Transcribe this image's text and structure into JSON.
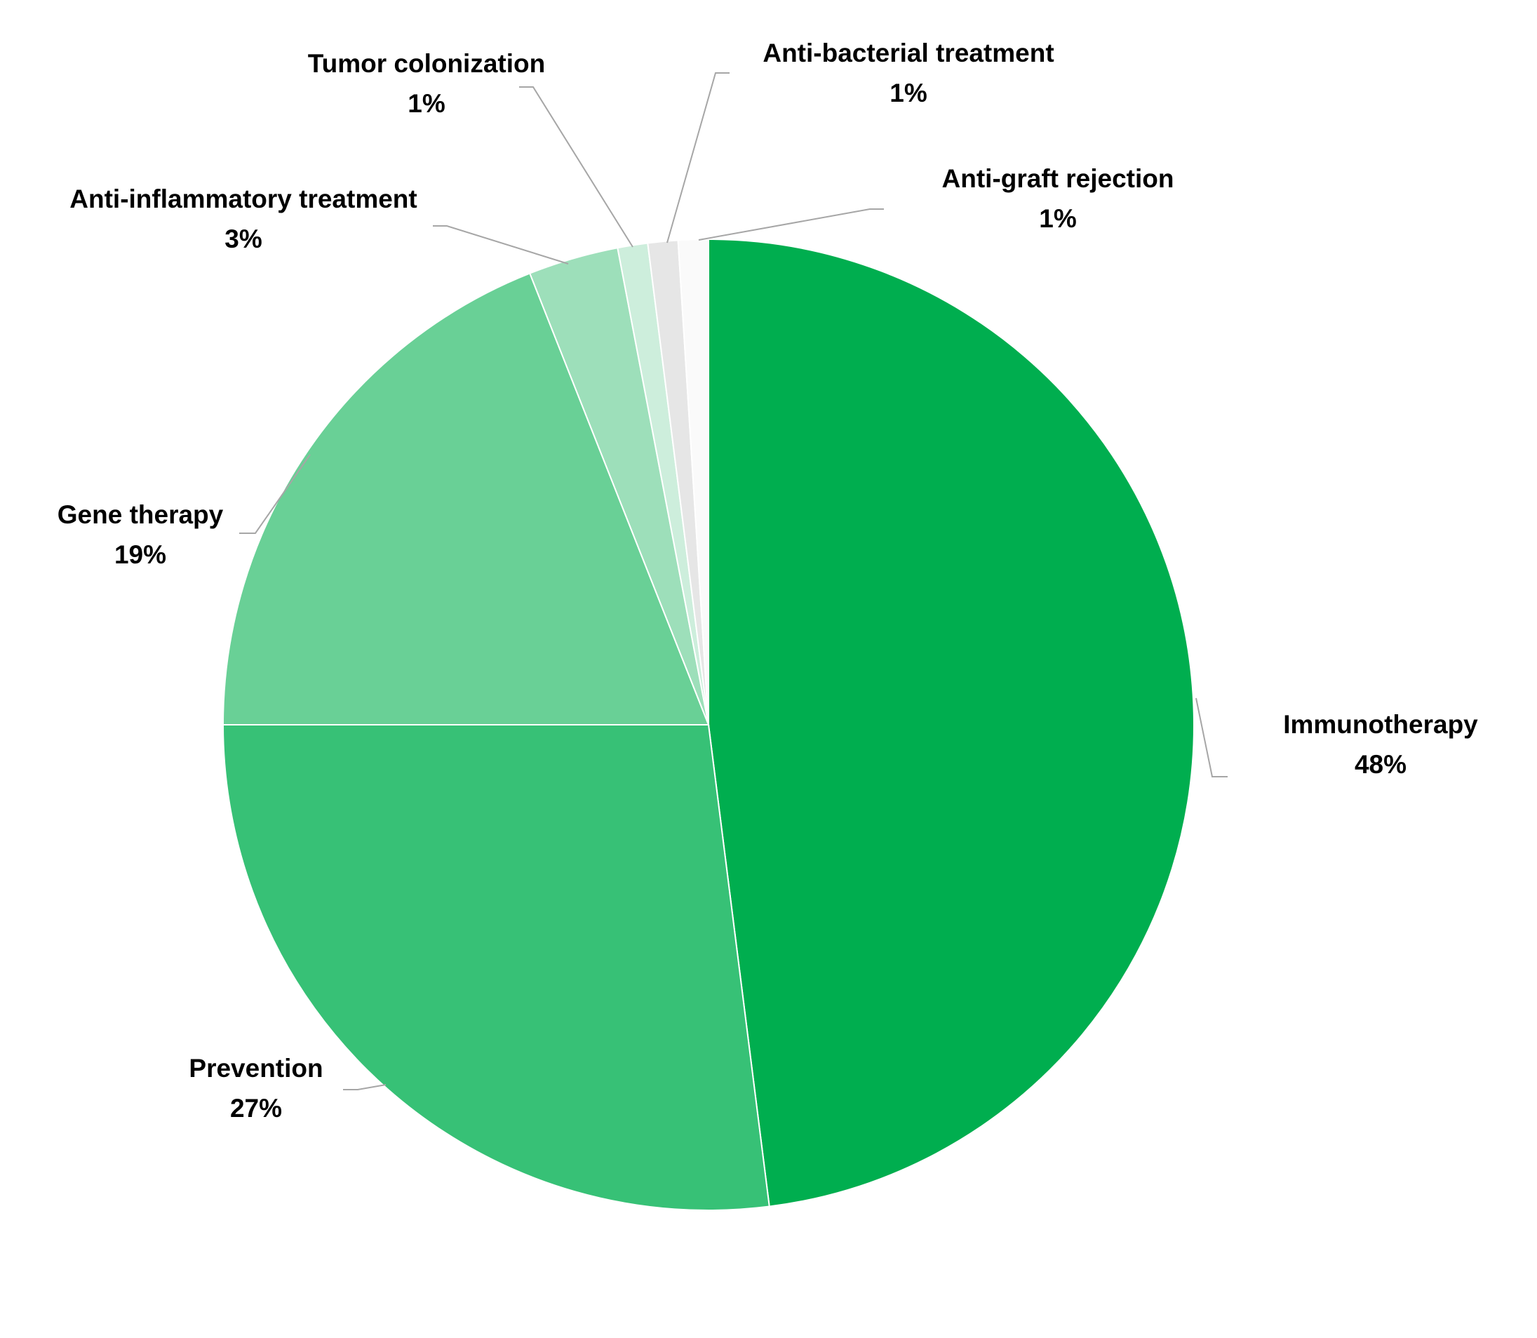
{
  "chart_data": {
    "type": "pie",
    "title": "",
    "start_angle_deg": 0,
    "direction": "clockwise",
    "slices": [
      {
        "label": "Immunotherapy",
        "value": 48,
        "value_label": "48%",
        "color": "#00AE4F"
      },
      {
        "label": "Prevention",
        "value": 27,
        "value_label": "27%",
        "color": "#37C176"
      },
      {
        "label": "Gene therapy",
        "value": 19,
        "value_label": "19%",
        "color": "#69D096"
      },
      {
        "label": "Anti-inflammatory treatment",
        "value": 3,
        "value_label": "3%",
        "color": "#9DDFBA"
      },
      {
        "label": "Tumor colonization",
        "value": 1,
        "value_label": "1%",
        "color": "#CDEEDC"
      },
      {
        "label": "Anti-bacterial treatment",
        "value": 1,
        "value_label": "1%",
        "color": "#E6E6E6"
      },
      {
        "label": "Anti-graft rejection",
        "value": 1,
        "value_label": "1%",
        "color": "#FAFAFA"
      }
    ],
    "data_labels": "category name and percentage, outside with leader lines",
    "leader_line_color": "#A6A6A6",
    "legend": "none"
  }
}
